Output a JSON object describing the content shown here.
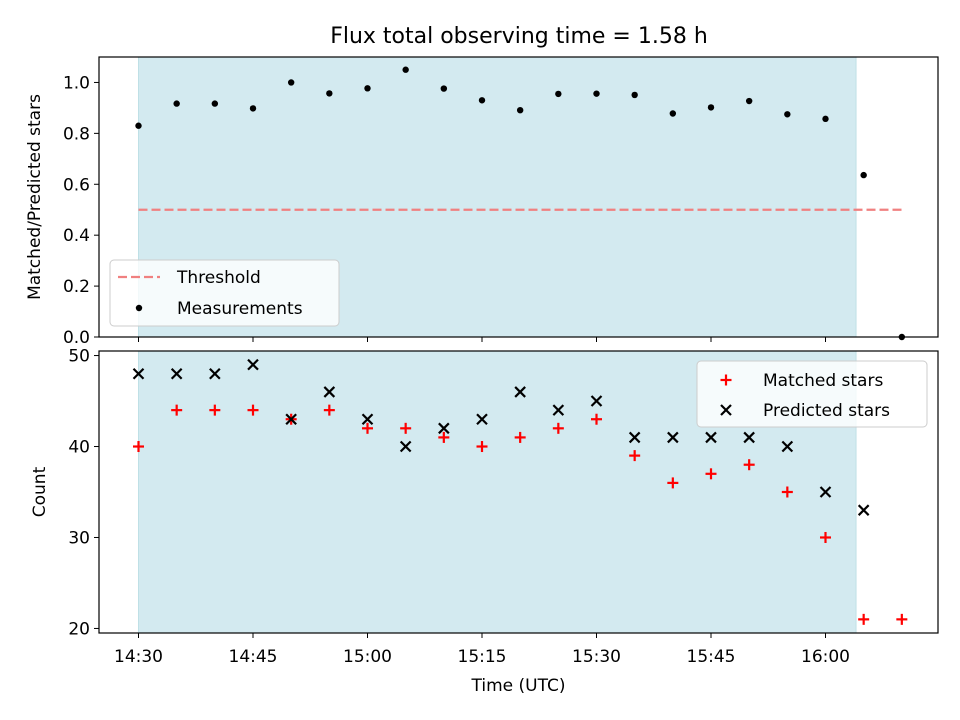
{
  "title": "Flux total observing time = 1.58 h",
  "chart_data": [
    {
      "type": "scatter",
      "title": "Flux total observing time = 1.58 h",
      "xlabel": "",
      "ylabel": "Matched/Predicted stars",
      "x_range": [
        "14:25",
        "16:12"
      ],
      "ylim": [
        0,
        1.1
      ],
      "yticks": [
        "0.0",
        "0.2",
        "0.4",
        "0.6",
        "0.8",
        "1.0"
      ],
      "shaded_interval": [
        "14:30",
        "16:04"
      ],
      "shade_color": "#d3eaf0",
      "legend": [
        "Threshold",
        "Measurements"
      ],
      "legend_position": "lower-left",
      "threshold": {
        "name": "Threshold",
        "value": 0.5,
        "x_range": [
          "14:30",
          "16:10"
        ],
        "color": "#f08080",
        "style": "dashed"
      },
      "series": [
        {
          "name": "Measurements",
          "marker": "dot",
          "color": "#000000",
          "x": [
            "14:30",
            "14:35",
            "14:40",
            "14:45",
            "14:50",
            "14:55",
            "15:00",
            "15:05",
            "15:10",
            "15:15",
            "15:20",
            "15:25",
            "15:30",
            "15:35",
            "15:40",
            "15:45",
            "15:50",
            "15:55",
            "16:00",
            "16:05",
            "16:10"
          ],
          "values": [
            0.83,
            0.917,
            0.917,
            0.898,
            1.0,
            0.957,
            0.977,
            1.05,
            0.976,
            0.93,
            0.891,
            0.955,
            0.956,
            0.951,
            0.878,
            0.902,
            0.927,
            0.875,
            0.857,
            0.636,
            0.0
          ]
        }
      ]
    },
    {
      "type": "scatter",
      "xlabel": "Time (UTC)",
      "ylabel": "Count",
      "xticks": [
        "14:30",
        "14:45",
        "15:00",
        "15:15",
        "15:30",
        "15:45",
        "16:00"
      ],
      "ylim": [
        19.5,
        50.5
      ],
      "yticks": [
        "20",
        "30",
        "40",
        "50"
      ],
      "shaded_interval": [
        "14:30",
        "16:04"
      ],
      "legend": [
        "Matched stars",
        "Predicted stars"
      ],
      "legend_position": "upper-right",
      "series": [
        {
          "name": "Matched stars",
          "marker": "plus",
          "color": "#ff0000",
          "x": [
            "14:30",
            "14:35",
            "14:40",
            "14:45",
            "14:50",
            "14:55",
            "15:00",
            "15:05",
            "15:10",
            "15:15",
            "15:20",
            "15:25",
            "15:30",
            "15:35",
            "15:40",
            "15:45",
            "15:50",
            "15:55",
            "16:00",
            "16:05",
            "16:10"
          ],
          "values": [
            40,
            44,
            44,
            44,
            43,
            44,
            42,
            42,
            41,
            40,
            41,
            42,
            43,
            39,
            36,
            37,
            38,
            35,
            30,
            21,
            21
          ]
        },
        {
          "name": "Predicted stars",
          "marker": "x",
          "color": "#000000",
          "x": [
            "14:30",
            "14:35",
            "14:40",
            "14:45",
            "14:50",
            "14:55",
            "15:00",
            "15:05",
            "15:10",
            "15:15",
            "15:20",
            "15:25",
            "15:30",
            "15:35",
            "15:40",
            "15:45",
            "15:50",
            "15:55",
            "16:00",
            "16:05"
          ],
          "values": [
            48,
            48,
            48,
            49,
            43,
            46,
            43,
            40,
            42,
            43,
            46,
            44,
            45,
            41,
            41,
            41,
            41,
            40,
            35,
            33
          ]
        }
      ]
    }
  ]
}
